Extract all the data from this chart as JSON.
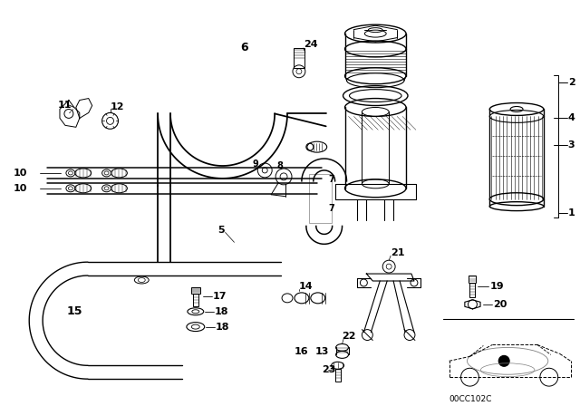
{
  "bg_color": "#ffffff",
  "line_color": "#000000",
  "diagram_code": "00CC102C",
  "figsize": [
    6.4,
    4.48
  ],
  "dpi": 100
}
